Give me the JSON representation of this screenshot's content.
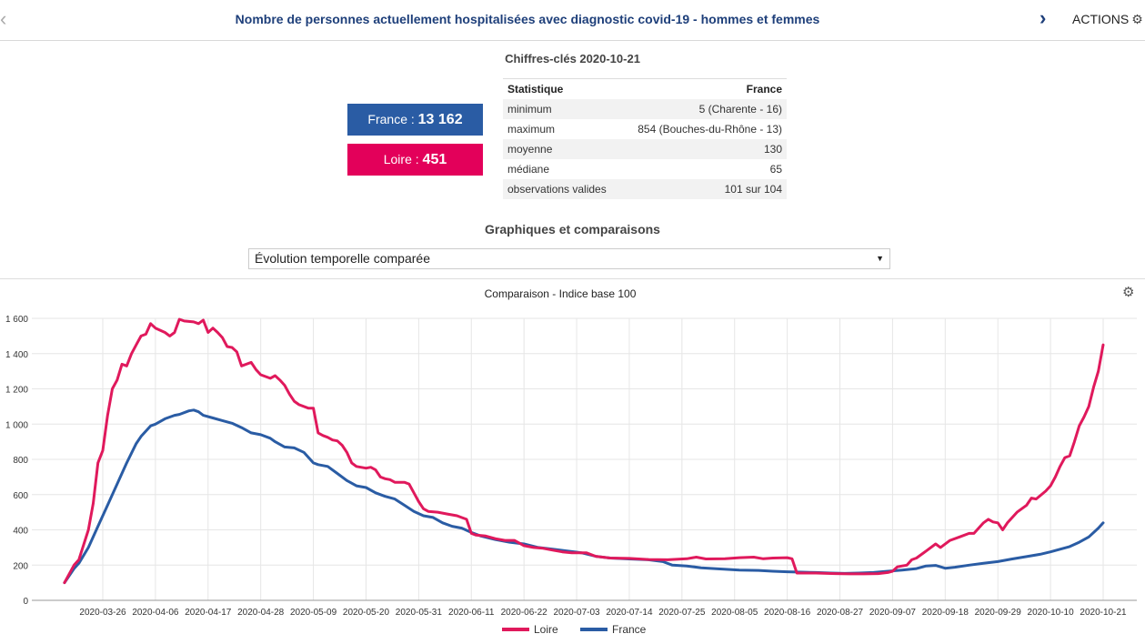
{
  "header": {
    "title": "Nombre de personnes actuellement hospitalisées avec diagnostic covid-19 - hommes et femmes",
    "prev_icon": "chevron-left-icon",
    "next_icon": "chevron-right-icon",
    "actions_label": "ACTIONS",
    "actions_icon": "gear-icon"
  },
  "key_figures": {
    "title": "Chiffres-clés 2020-10-21",
    "kpis": [
      {
        "label": "France : ",
        "value": "13 162",
        "color": "#2a5ca4"
      },
      {
        "label": "Loire : ",
        "value": "451",
        "color": "#e3005a"
      }
    ],
    "table": {
      "headers": [
        "Statistique",
        "France"
      ],
      "rows": [
        [
          "minimum",
          "5 (Charente - 16)"
        ],
        [
          "maximum",
          "854 (Bouches-du-Rhône - 13)"
        ],
        [
          "moyenne",
          "130"
        ],
        [
          "médiane",
          "65"
        ],
        [
          "observations valides",
          "101 sur 104"
        ]
      ]
    }
  },
  "graphs": {
    "title": "Graphiques et comparaisons",
    "select_value": "Évolution temporelle comparée"
  },
  "chart_data": {
    "type": "line",
    "title": "Comparaison - Indice base 100",
    "xlabel": "",
    "ylabel": "",
    "ylim": [
      0,
      1600
    ],
    "yticks": [
      0,
      200,
      400,
      600,
      800,
      1000,
      1200,
      1400,
      1600
    ],
    "ytick_labels": [
      "0",
      "200",
      "400",
      "600",
      "800",
      "1 000",
      "1 200",
      "1 400",
      "1 600"
    ],
    "x_start": "2020-03-18",
    "x_end": "2020-10-21",
    "xtick_labels": [
      "2020-03-26",
      "2020-04-06",
      "2020-04-17",
      "2020-04-28",
      "2020-05-09",
      "2020-05-20",
      "2020-05-31",
      "2020-06-11",
      "2020-06-22",
      "2020-07-03",
      "2020-07-14",
      "2020-07-25",
      "2020-08-05",
      "2020-08-16",
      "2020-08-27",
      "2020-09-07",
      "2020-09-18",
      "2020-09-29",
      "2020-10-10",
      "2020-10-21"
    ],
    "grid": true,
    "legend": "bottom-center",
    "series": [
      {
        "name": "Loire",
        "color": "#e0195c",
        "points": [
          [
            "2020-03-18",
            100
          ],
          [
            "2020-03-20",
            200
          ],
          [
            "2020-03-21",
            230
          ],
          [
            "2020-03-23",
            400
          ],
          [
            "2020-03-24",
            550
          ],
          [
            "2020-03-25",
            780
          ],
          [
            "2020-03-26",
            850
          ],
          [
            "2020-03-27",
            1050
          ],
          [
            "2020-03-28",
            1200
          ],
          [
            "2020-03-29",
            1250
          ],
          [
            "2020-03-30",
            1340
          ],
          [
            "2020-03-31",
            1330
          ],
          [
            "2020-04-01",
            1400
          ],
          [
            "2020-04-02",
            1450
          ],
          [
            "2020-04-03",
            1500
          ],
          [
            "2020-04-04",
            1510
          ],
          [
            "2020-04-05",
            1570
          ],
          [
            "2020-04-06",
            1545
          ],
          [
            "2020-04-08",
            1520
          ],
          [
            "2020-04-09",
            1500
          ],
          [
            "2020-04-10",
            1520
          ],
          [
            "2020-04-11",
            1595
          ],
          [
            "2020-04-12",
            1585
          ],
          [
            "2020-04-14",
            1580
          ],
          [
            "2020-04-15",
            1570
          ],
          [
            "2020-04-16",
            1590
          ],
          [
            "2020-04-17",
            1520
          ],
          [
            "2020-04-18",
            1545
          ],
          [
            "2020-04-19",
            1520
          ],
          [
            "2020-04-20",
            1490
          ],
          [
            "2020-04-21",
            1440
          ],
          [
            "2020-04-22",
            1435
          ],
          [
            "2020-04-23",
            1410
          ],
          [
            "2020-04-24",
            1330
          ],
          [
            "2020-04-26",
            1350
          ],
          [
            "2020-04-27",
            1310
          ],
          [
            "2020-04-28",
            1280
          ],
          [
            "2020-04-30",
            1260
          ],
          [
            "2020-05-01",
            1275
          ],
          [
            "2020-05-02",
            1250
          ],
          [
            "2020-05-03",
            1220
          ],
          [
            "2020-05-04",
            1170
          ],
          [
            "2020-05-05",
            1130
          ],
          [
            "2020-05-06",
            1110
          ],
          [
            "2020-05-08",
            1090
          ],
          [
            "2020-05-09",
            1090
          ],
          [
            "2020-05-10",
            950
          ],
          [
            "2020-05-11",
            935
          ],
          [
            "2020-05-12",
            925
          ],
          [
            "2020-05-13",
            910
          ],
          [
            "2020-05-14",
            905
          ],
          [
            "2020-05-15",
            880
          ],
          [
            "2020-05-16",
            840
          ],
          [
            "2020-05-17",
            780
          ],
          [
            "2020-05-18",
            760
          ],
          [
            "2020-05-20",
            750
          ],
          [
            "2020-05-21",
            755
          ],
          [
            "2020-05-22",
            740
          ],
          [
            "2020-05-23",
            700
          ],
          [
            "2020-05-24",
            690
          ],
          [
            "2020-05-25",
            685
          ],
          [
            "2020-05-26",
            670
          ],
          [
            "2020-05-28",
            670
          ],
          [
            "2020-05-29",
            660
          ],
          [
            "2020-05-30",
            610
          ],
          [
            "2020-05-31",
            560
          ],
          [
            "2020-06-01",
            520
          ],
          [
            "2020-06-02",
            505
          ],
          [
            "2020-06-04",
            500
          ],
          [
            "2020-06-06",
            490
          ],
          [
            "2020-06-08",
            480
          ],
          [
            "2020-06-10",
            460
          ],
          [
            "2020-06-11",
            380
          ],
          [
            "2020-06-12",
            370
          ],
          [
            "2020-06-14",
            365
          ],
          [
            "2020-06-16",
            350
          ],
          [
            "2020-06-18",
            340
          ],
          [
            "2020-06-20",
            340
          ],
          [
            "2020-06-22",
            310
          ],
          [
            "2020-06-24",
            300
          ],
          [
            "2020-06-26",
            295
          ],
          [
            "2020-06-28",
            285
          ],
          [
            "2020-06-30",
            275
          ],
          [
            "2020-07-02",
            270
          ],
          [
            "2020-07-05",
            270
          ],
          [
            "2020-07-07",
            250
          ],
          [
            "2020-07-10",
            240
          ],
          [
            "2020-07-14",
            238
          ],
          [
            "2020-07-18",
            232
          ],
          [
            "2020-07-22",
            230
          ],
          [
            "2020-07-26",
            236
          ],
          [
            "2020-07-28",
            245
          ],
          [
            "2020-07-30",
            235
          ],
          [
            "2020-08-03",
            236
          ],
          [
            "2020-08-06",
            242
          ],
          [
            "2020-08-09",
            245
          ],
          [
            "2020-08-11",
            236
          ],
          [
            "2020-08-13",
            240
          ],
          [
            "2020-08-16",
            242
          ],
          [
            "2020-08-17",
            236
          ],
          [
            "2020-08-18",
            155
          ],
          [
            "2020-08-22",
            155
          ],
          [
            "2020-08-26",
            152
          ],
          [
            "2020-08-29",
            150
          ],
          [
            "2020-09-01",
            150
          ],
          [
            "2020-09-04",
            152
          ],
          [
            "2020-09-06",
            158
          ],
          [
            "2020-09-07",
            165
          ],
          [
            "2020-09-08",
            190
          ],
          [
            "2020-09-09",
            195
          ],
          [
            "2020-09-10",
            200
          ],
          [
            "2020-09-11",
            230
          ],
          [
            "2020-09-12",
            240
          ],
          [
            "2020-09-14",
            280
          ],
          [
            "2020-09-16",
            320
          ],
          [
            "2020-09-17",
            300
          ],
          [
            "2020-09-19",
            340
          ],
          [
            "2020-09-21",
            360
          ],
          [
            "2020-09-23",
            380
          ],
          [
            "2020-09-24",
            380
          ],
          [
            "2020-09-26",
            440
          ],
          [
            "2020-09-27",
            460
          ],
          [
            "2020-09-28",
            445
          ],
          [
            "2020-09-29",
            440
          ],
          [
            "2020-09-30",
            400
          ],
          [
            "2020-10-01",
            440
          ],
          [
            "2020-10-03",
            500
          ],
          [
            "2020-10-05",
            540
          ],
          [
            "2020-10-06",
            580
          ],
          [
            "2020-10-07",
            575
          ],
          [
            "2020-10-09",
            620
          ],
          [
            "2020-10-10",
            650
          ],
          [
            "2020-10-11",
            700
          ],
          [
            "2020-10-12",
            760
          ],
          [
            "2020-10-13",
            810
          ],
          [
            "2020-10-14",
            820
          ],
          [
            "2020-10-15",
            900
          ],
          [
            "2020-10-16",
            990
          ],
          [
            "2020-10-17",
            1040
          ],
          [
            "2020-10-18",
            1100
          ],
          [
            "2020-10-19",
            1210
          ],
          [
            "2020-10-20",
            1300
          ],
          [
            "2020-10-21",
            1450
          ]
        ]
      },
      {
        "name": "France",
        "color": "#2a5ca4",
        "points": [
          [
            "2020-03-18",
            100
          ],
          [
            "2020-03-20",
            180
          ],
          [
            "2020-03-21",
            210
          ],
          [
            "2020-03-23",
            300
          ],
          [
            "2020-03-25",
            420
          ],
          [
            "2020-03-27",
            540
          ],
          [
            "2020-03-29",
            660
          ],
          [
            "2020-03-31",
            780
          ],
          [
            "2020-04-02",
            890
          ],
          [
            "2020-04-03",
            930
          ],
          [
            "2020-04-05",
            990
          ],
          [
            "2020-04-06",
            1000
          ],
          [
            "2020-04-08",
            1030
          ],
          [
            "2020-04-10",
            1050
          ],
          [
            "2020-04-11",
            1055
          ],
          [
            "2020-04-13",
            1075
          ],
          [
            "2020-04-14",
            1080
          ],
          [
            "2020-04-15",
            1070
          ],
          [
            "2020-04-16",
            1050
          ],
          [
            "2020-04-18",
            1035
          ],
          [
            "2020-04-20",
            1020
          ],
          [
            "2020-04-22",
            1005
          ],
          [
            "2020-04-24",
            980
          ],
          [
            "2020-04-26",
            950
          ],
          [
            "2020-04-28",
            940
          ],
          [
            "2020-04-30",
            920
          ],
          [
            "2020-05-01",
            900
          ],
          [
            "2020-05-03",
            870
          ],
          [
            "2020-05-05",
            865
          ],
          [
            "2020-05-07",
            840
          ],
          [
            "2020-05-09",
            780
          ],
          [
            "2020-05-10",
            770
          ],
          [
            "2020-05-12",
            760
          ],
          [
            "2020-05-14",
            720
          ],
          [
            "2020-05-16",
            680
          ],
          [
            "2020-05-18",
            650
          ],
          [
            "2020-05-20",
            640
          ],
          [
            "2020-05-22",
            610
          ],
          [
            "2020-05-24",
            590
          ],
          [
            "2020-05-26",
            575
          ],
          [
            "2020-05-28",
            540
          ],
          [
            "2020-05-30",
            505
          ],
          [
            "2020-06-01",
            480
          ],
          [
            "2020-06-03",
            470
          ],
          [
            "2020-06-05",
            440
          ],
          [
            "2020-06-07",
            420
          ],
          [
            "2020-06-09",
            410
          ],
          [
            "2020-06-11",
            385
          ],
          [
            "2020-06-13",
            365
          ],
          [
            "2020-06-16",
            345
          ],
          [
            "2020-06-19",
            330
          ],
          [
            "2020-06-22",
            320
          ],
          [
            "2020-06-25",
            300
          ],
          [
            "2020-06-28",
            290
          ],
          [
            "2020-07-01",
            280
          ],
          [
            "2020-07-04",
            270
          ],
          [
            "2020-07-07",
            250
          ],
          [
            "2020-07-10",
            240
          ],
          [
            "2020-07-14",
            235
          ],
          [
            "2020-07-18",
            230
          ],
          [
            "2020-07-21",
            220
          ],
          [
            "2020-07-23",
            200
          ],
          [
            "2020-07-26",
            195
          ],
          [
            "2020-07-29",
            185
          ],
          [
            "2020-08-02",
            178
          ],
          [
            "2020-08-06",
            172
          ],
          [
            "2020-08-10",
            170
          ],
          [
            "2020-08-13",
            165
          ],
          [
            "2020-08-16",
            162
          ],
          [
            "2020-08-19",
            160
          ],
          [
            "2020-08-22",
            158
          ],
          [
            "2020-08-25",
            155
          ],
          [
            "2020-08-28",
            153
          ],
          [
            "2020-08-31",
            155
          ],
          [
            "2020-09-03",
            158
          ],
          [
            "2020-09-06",
            165
          ],
          [
            "2020-09-09",
            172
          ],
          [
            "2020-09-12",
            180
          ],
          [
            "2020-09-14",
            195
          ],
          [
            "2020-09-16",
            198
          ],
          [
            "2020-09-18",
            182
          ],
          [
            "2020-09-20",
            188
          ],
          [
            "2020-09-23",
            200
          ],
          [
            "2020-09-26",
            210
          ],
          [
            "2020-09-29",
            220
          ],
          [
            "2020-10-02",
            235
          ],
          [
            "2020-10-05",
            248
          ],
          [
            "2020-10-08",
            262
          ],
          [
            "2020-10-10",
            275
          ],
          [
            "2020-10-12",
            290
          ],
          [
            "2020-10-14",
            305
          ],
          [
            "2020-10-16",
            330
          ],
          [
            "2020-10-18",
            360
          ],
          [
            "2020-10-20",
            410
          ],
          [
            "2020-10-21",
            440
          ]
        ]
      }
    ]
  }
}
